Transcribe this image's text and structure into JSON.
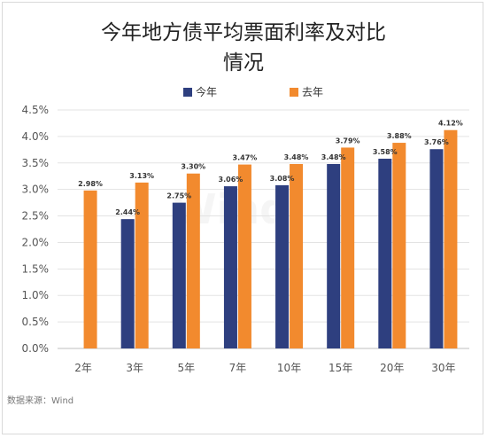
{
  "chart_data": {
    "type": "bar",
    "title_lines": [
      "今年地方债平均票面利率及对比",
      "情况"
    ],
    "categories": [
      "2年",
      "3年",
      "5年",
      "7年",
      "10年",
      "15年",
      "20年",
      "30年"
    ],
    "series": [
      {
        "name": "今年",
        "color": "#2e3f7f",
        "values": [
          null,
          2.44,
          2.75,
          3.06,
          3.08,
          3.48,
          3.58,
          3.76
        ],
        "labels": [
          "",
          "2.44%",
          "2.75%",
          "3.06%",
          "3.08%",
          "3.48%",
          "3.58%",
          "3.76%"
        ]
      },
      {
        "name": "去年",
        "color": "#f28a2e",
        "values": [
          2.98,
          3.13,
          3.3,
          3.47,
          3.48,
          3.79,
          3.88,
          4.12
        ],
        "labels": [
          "2.98%",
          "3.13%",
          "3.30%",
          "3.47%",
          "3.48%",
          "3.79%",
          "3.88%",
          "4.12%"
        ]
      }
    ],
    "ylim": [
      0,
      4.5
    ],
    "yticks": [
      "0.0%",
      "0.5%",
      "1.0%",
      "1.5%",
      "2.0%",
      "2.5%",
      "3.0%",
      "3.5%",
      "4.0%",
      "4.5%"
    ],
    "grid": true,
    "legend": "top-center"
  },
  "source_note": "数据来源：Wind",
  "watermark": "Wind"
}
